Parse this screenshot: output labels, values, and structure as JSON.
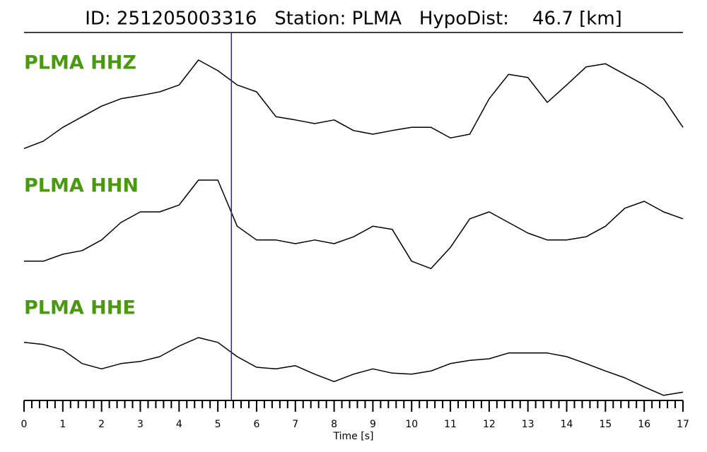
{
  "chart_data": {
    "type": "line",
    "title": "ID: 251205003316   Station: PLMA   HypoDist:    46.7 [km]",
    "xlabel": "Time [s]",
    "xlim": [
      0,
      17
    ],
    "xticks": [
      0,
      1,
      2,
      3,
      4,
      5,
      6,
      7,
      8,
      9,
      10,
      11,
      12,
      13,
      14,
      15,
      16,
      17
    ],
    "xminorticks": [
      0.2,
      0.4,
      0.6,
      0.8,
      1.2,
      1.4,
      1.6,
      1.8,
      2.2,
      2.4,
      2.6,
      2.8,
      3.2,
      3.4,
      3.6,
      3.8,
      4.2,
      4.4,
      4.6,
      4.8,
      5.2,
      5.4,
      5.6,
      5.8,
      6.2,
      6.4,
      6.6,
      6.8,
      7.2,
      7.4,
      7.6,
      7.8,
      8.2,
      8.4,
      8.6,
      8.8,
      9.2,
      9.4,
      9.6,
      9.8,
      10.2,
      10.4,
      10.6,
      10.8,
      11.2,
      11.4,
      11.6,
      11.8,
      12.2,
      12.4,
      12.6,
      12.8,
      13.2,
      13.4,
      13.6,
      13.8,
      14.2,
      14.4,
      14.6,
      14.8,
      15.2,
      15.4,
      15.6,
      15.8,
      16.2,
      16.4,
      16.6,
      16.8
    ],
    "ylim": [
      -1,
      1
    ],
    "label_color": "#4a9a0f",
    "pick": {
      "x": 5.35,
      "color": "#1f1fd0"
    },
    "x": [
      0,
      0.5,
      1,
      1.5,
      2,
      2.5,
      3,
      3.5,
      4,
      4.5,
      5,
      5.5,
      6,
      6.5,
      7,
      7.5,
      8,
      8.5,
      9,
      9.5,
      10,
      10.5,
      11,
      11.5,
      12,
      12.5,
      13,
      13.5,
      14,
      14.5,
      15,
      15.5,
      16,
      16.5,
      17
    ],
    "series": [
      {
        "name": "PLMA HHZ",
        "color": "#000000",
        "values": [
          -0.87,
          -0.73,
          -0.47,
          -0.27,
          -0.07,
          0.07,
          0.13,
          0.2,
          0.33,
          0.8,
          0.6,
          0.33,
          0.2,
          -0.27,
          -0.33,
          -0.4,
          -0.33,
          -0.53,
          -0.6,
          -0.53,
          -0.47,
          -0.47,
          -0.67,
          -0.6,
          0.07,
          0.53,
          0.47,
          0,
          0.33,
          0.67,
          0.73,
          0.53,
          0.33,
          0.07,
          -0.47
        ]
      },
      {
        "name": "PLMA HHN",
        "color": "#000000",
        "values": [
          -0.73,
          -0.73,
          -0.6,
          -0.53,
          -0.33,
          0,
          0.2,
          0.2,
          0.33,
          0.8,
          0.8,
          -0.07,
          -0.33,
          -0.33,
          -0.4,
          -0.33,
          -0.4,
          -0.27,
          -0.07,
          -0.13,
          -0.73,
          -0.87,
          -0.47,
          0.07,
          0.2,
          0,
          -0.2,
          -0.33,
          -0.33,
          -0.27,
          -0.07,
          0.27,
          0.4,
          0.2,
          0.07
        ]
      },
      {
        "name": "PLMA HHE",
        "color": "#000000",
        "values": [
          0.47,
          0.43,
          0.33,
          0.07,
          -0.03,
          0.07,
          0.11,
          0.2,
          0.4,
          0.56,
          0.47,
          0.2,
          0,
          -0.03,
          0.03,
          -0.13,
          -0.27,
          -0.13,
          -0.03,
          -0.11,
          -0.13,
          -0.07,
          0.07,
          0.13,
          0.16,
          0.27,
          0.27,
          0.27,
          0.2,
          0.07,
          -0.07,
          -0.2,
          -0.37,
          -0.53,
          -0.47
        ]
      }
    ]
  }
}
